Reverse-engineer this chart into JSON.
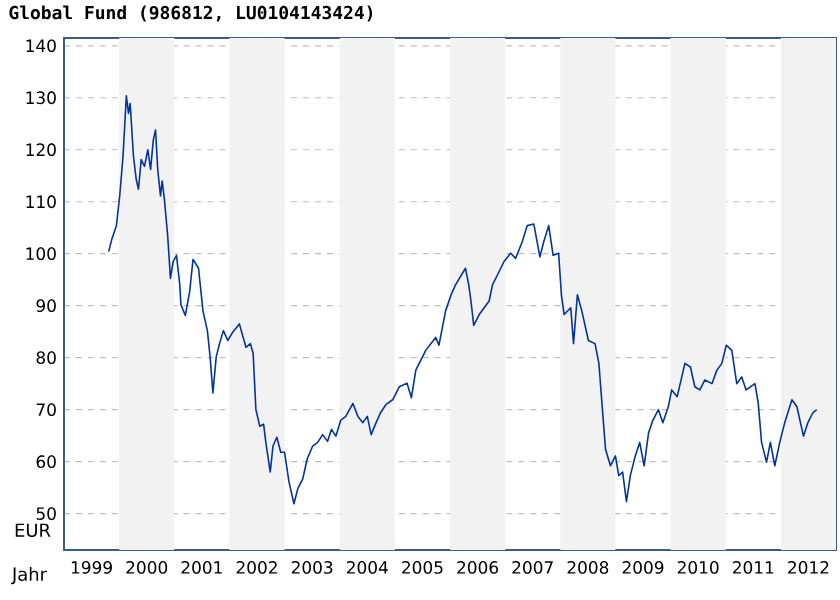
{
  "chart_data": {
    "type": "line",
    "title": "Global Fund (986812, LU0104143424)",
    "xlabel": "Jahr",
    "ylabel": "EUR",
    "xlim": [
      1999,
      2013
    ],
    "ylim": [
      43,
      141.5
    ],
    "xticks": [
      {
        "value": 1999.5,
        "label": "1999"
      },
      {
        "value": 2000.5,
        "label": "2000"
      },
      {
        "value": 2001.5,
        "label": "2001"
      },
      {
        "value": 2002.5,
        "label": "2002"
      },
      {
        "value": 2003.5,
        "label": "2003"
      },
      {
        "value": 2004.5,
        "label": "2004"
      },
      {
        "value": 2005.5,
        "label": "2005"
      },
      {
        "value": 2006.5,
        "label": "2006"
      },
      {
        "value": 2007.5,
        "label": "2007"
      },
      {
        "value": 2008.5,
        "label": "2008"
      },
      {
        "value": 2009.5,
        "label": "2009"
      },
      {
        "value": 2010.5,
        "label": "2010"
      },
      {
        "value": 2011.5,
        "label": "2011"
      },
      {
        "value": 2012.5,
        "label": "2012"
      }
    ],
    "yticks": [
      50,
      60,
      70,
      80,
      90,
      100,
      110,
      120,
      130,
      140
    ],
    "grid": "y",
    "bands": [
      {
        "axis": "x",
        "from": 2000,
        "to": 2001,
        "color": "#f2f2f2"
      },
      {
        "axis": "x",
        "from": 2002,
        "to": 2003,
        "color": "#f2f2f2"
      },
      {
        "axis": "x",
        "from": 2004,
        "to": 2005,
        "color": "#f2f2f2"
      },
      {
        "axis": "x",
        "from": 2006,
        "to": 2007,
        "color": "#f2f2f2"
      },
      {
        "axis": "x",
        "from": 2008,
        "to": 2009,
        "color": "#f2f2f2"
      },
      {
        "axis": "x",
        "from": 2010,
        "to": 2011,
        "color": "#f2f2f2"
      },
      {
        "axis": "x",
        "from": 2012,
        "to": 2013,
        "color": "#f2f2f2"
      }
    ],
    "series": [
      {
        "color": "#0033a0",
        "x": [
          1999.81,
          1999.87,
          1999.95,
          2000.01,
          2000.07,
          2000.11,
          2000.13,
          2000.17,
          2000.2,
          2000.26,
          2000.31,
          2000.35,
          2000.4,
          2000.46,
          2000.52,
          2000.57,
          2000.62,
          2000.66,
          2000.7,
          2000.75,
          2000.78,
          2000.82,
          2000.88,
          2000.93,
          2000.98,
          2001.04,
          2001.1,
          2001.12,
          2001.2,
          2001.28,
          2001.34,
          2001.44,
          2001.52,
          2001.6,
          2001.65,
          2001.7,
          2001.76,
          2001.82,
          2001.89,
          2001.97,
          2002.06,
          2002.18,
          2002.3,
          2002.38,
          2002.43,
          2002.48,
          2002.55,
          2002.62,
          2002.66,
          2002.74,
          2002.79,
          2002.86,
          2002.93,
          2003.0,
          2003.08,
          2003.17,
          2003.24,
          2003.33,
          2003.41,
          2003.51,
          2003.6,
          2003.69,
          2003.78,
          2003.85,
          2003.93,
          2004.02,
          2004.11,
          2004.24,
          2004.33,
          2004.42,
          2004.5,
          2004.57,
          2004.66,
          2004.74,
          2004.84,
          2004.96,
          2005.08,
          2005.22,
          2005.3,
          2005.38,
          2005.56,
          2005.74,
          2005.8,
          2005.92,
          2006.02,
          2006.1,
          2006.28,
          2006.34,
          2006.38,
          2006.43,
          2006.53,
          2006.71,
          2006.77,
          2006.86,
          2006.98,
          2007.1,
          2007.19,
          2007.31,
          2007.4,
          2007.52,
          2007.63,
          2007.7,
          2007.79,
          2007.87,
          2007.97,
          2008.02,
          2008.07,
          2008.19,
          2008.24,
          2008.31,
          2008.39,
          2008.51,
          2008.63,
          2008.7,
          2008.76,
          2008.82,
          2008.91,
          2009.0,
          2009.06,
          2009.13,
          2009.2,
          2009.27,
          2009.36,
          2009.44,
          2009.52,
          2009.6,
          2009.68,
          2009.78,
          2009.86,
          2009.96,
          2010.02,
          2010.12,
          2010.26,
          2010.36,
          2010.44,
          2010.53,
          2010.62,
          2010.75,
          2010.84,
          2010.93,
          2011.01,
          2011.11,
          2011.2,
          2011.29,
          2011.37,
          2011.53,
          2011.59,
          2011.65,
          2011.74,
          2011.81,
          2011.89,
          2011.98,
          2012.07,
          2012.2,
          2012.29,
          2012.41,
          2012.49,
          2012.58,
          2012.65
        ],
        "values": [
          100.4,
          102.9,
          105.4,
          111.1,
          118.7,
          126.3,
          130.4,
          127,
          128.9,
          118.7,
          114.3,
          112.4,
          118.1,
          116.8,
          120,
          116.2,
          121.9,
          123.8,
          116.2,
          111.1,
          114,
          110.5,
          103.5,
          95.3,
          98.5,
          99.7,
          94,
          90.2,
          88.1,
          92.8,
          98.9,
          97.2,
          89,
          85.2,
          80.1,
          73.2,
          80.1,
          82.7,
          85.2,
          83.3,
          84.9,
          86.5,
          82,
          82.7,
          80.8,
          70,
          66.8,
          67.2,
          63.7,
          58,
          63,
          64.7,
          61.8,
          61.8,
          56.1,
          51.9,
          54.8,
          56.7,
          60.5,
          63,
          63.7,
          65.2,
          63.9,
          66.2,
          64.9,
          68,
          68.7,
          71.2,
          68.7,
          67.5,
          68.7,
          65.2,
          67.5,
          69.4,
          71,
          71.9,
          74.4,
          75.1,
          72.3,
          77.6,
          81.4,
          83.9,
          82.4,
          89,
          92.1,
          94,
          97.2,
          94,
          90.9,
          86.2,
          88.3,
          90.9,
          94,
          95.9,
          98.5,
          100.1,
          99.1,
          102.3,
          105.4,
          105.7,
          99.4,
          102.3,
          105.4,
          99.7,
          100.1,
          92.1,
          88.3,
          89.6,
          82.7,
          92.1,
          89,
          83.3,
          82.7,
          78.9,
          70.6,
          62.4,
          59.2,
          61.1,
          57.3,
          58,
          52.3,
          57.3,
          61.1,
          63.7,
          59.2,
          65.5,
          68,
          70,
          67.5,
          70.6,
          73.8,
          72.5,
          78.9,
          78.2,
          74.4,
          73.8,
          75.7,
          75,
          77.6,
          78.9,
          82.4,
          81.4,
          75,
          76.3,
          73.8,
          75,
          71.2,
          63.7,
          59.9,
          63.7,
          59.2,
          63.7,
          67.5,
          71.9,
          70.6,
          64.9,
          67.5,
          69.4,
          70
        ]
      }
    ]
  }
}
